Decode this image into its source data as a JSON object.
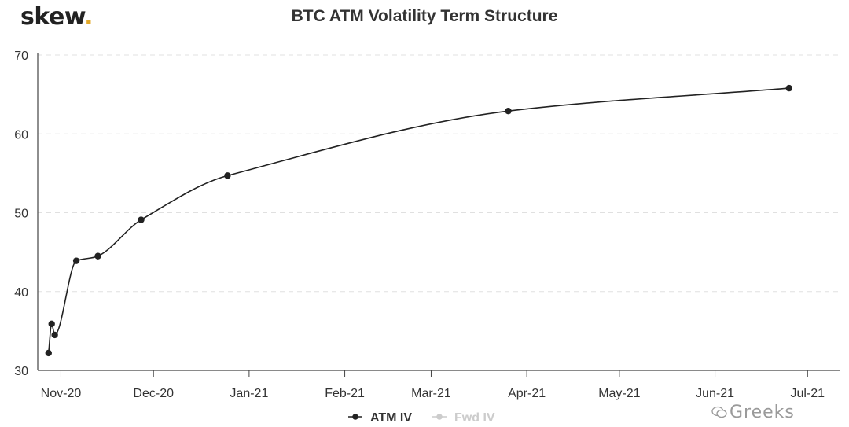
{
  "logo": {
    "text": "skew",
    "dot": "."
  },
  "chart_data": {
    "type": "line",
    "title": "BTC ATM Volatility Term Structure",
    "xlabel": "",
    "ylabel": "",
    "ylim": [
      30,
      70
    ],
    "y_ticks": [
      "30",
      "40",
      "50",
      "60",
      "70"
    ],
    "x_ticks": [
      "Nov-20",
      "Dec-20",
      "Jan-21",
      "Feb-21",
      "Mar-21",
      "Apr-21",
      "May-21",
      "Jun-21",
      "Jul-21"
    ],
    "x_tick_dates": [
      "2020-11-01",
      "2020-12-01",
      "2021-01-01",
      "2021-02-01",
      "2021-03-01",
      "2021-04-01",
      "2021-05-01",
      "2021-06-01",
      "2021-07-01"
    ],
    "grid": "horizontal-dashed",
    "legend": "bottom-center",
    "series": [
      {
        "name": "ATM IV",
        "color": "#222222",
        "visible": true,
        "x": [
          "2020-10-28",
          "2020-10-29",
          "2020-10-30",
          "2020-11-06",
          "2020-11-13",
          "2020-11-27",
          "2020-12-25",
          "2021-03-26",
          "2021-06-25"
        ],
        "values": [
          32.2,
          35.9,
          34.5,
          43.9,
          44.5,
          49.1,
          54.7,
          62.9,
          65.8
        ]
      },
      {
        "name": "Fwd IV",
        "color": "#cccccc",
        "visible": false,
        "x": [],
        "values": []
      }
    ]
  },
  "watermark": {
    "text": "Greeks",
    "icon": "wechat-icon"
  }
}
